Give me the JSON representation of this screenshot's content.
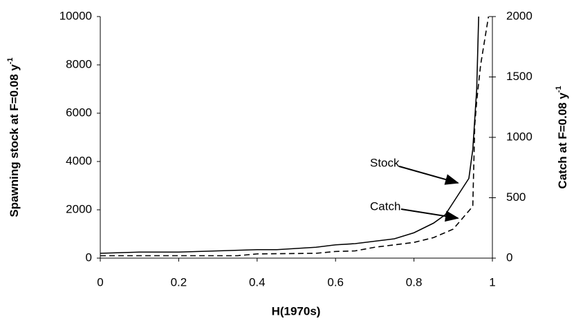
{
  "chart_data": {
    "type": "line",
    "xlabel": "H(1970s)",
    "ylabel": {
      "text": "Spawning stock at F=0.08 y",
      "superscript": "-1"
    },
    "y2label": {
      "text": "Catch at F=0.08 y",
      "superscript": "-1"
    },
    "xlim": [
      0,
      1
    ],
    "xticks": [
      0,
      0.2,
      0.4,
      0.6,
      0.8,
      1
    ],
    "ylim": [
      0,
      10000
    ],
    "yticks": [
      0,
      2000,
      4000,
      6000,
      8000,
      10000
    ],
    "y2lim": [
      0,
      2000
    ],
    "y2ticks": [
      0,
      500,
      1000,
      1500,
      2000
    ],
    "series": [
      {
        "name": "Stock",
        "color": "#000000",
        "dash": "none",
        "x": [
          0,
          0.1,
          0.2,
          0.3,
          0.4,
          0.45,
          0.5,
          0.55,
          0.6,
          0.65,
          0.7,
          0.75,
          0.8,
          0.85,
          0.88,
          0.9,
          0.92,
          0.94,
          0.95,
          0.96,
          0.965
        ],
        "values": [
          200,
          250,
          250,
          300,
          350,
          350,
          400,
          450,
          550,
          600,
          700,
          800,
          1050,
          1450,
          1800,
          2300,
          2800,
          3300,
          4500,
          7000,
          10000
        ]
      },
      {
        "name": "Catch",
        "color": "#000000",
        "dash": "8,5",
        "axis": "y2",
        "x": [
          0,
          0.35,
          0.4,
          0.55,
          0.6,
          0.65,
          0.7,
          0.8,
          0.85,
          0.9,
          0.945,
          0.95,
          0.955,
          0.96,
          0.97,
          0.99
        ],
        "values": [
          20,
          20,
          35,
          40,
          55,
          60,
          90,
          130,
          170,
          240,
          410,
          430,
          1100,
          1300,
          1600,
          2000
        ]
      }
    ]
  }
}
